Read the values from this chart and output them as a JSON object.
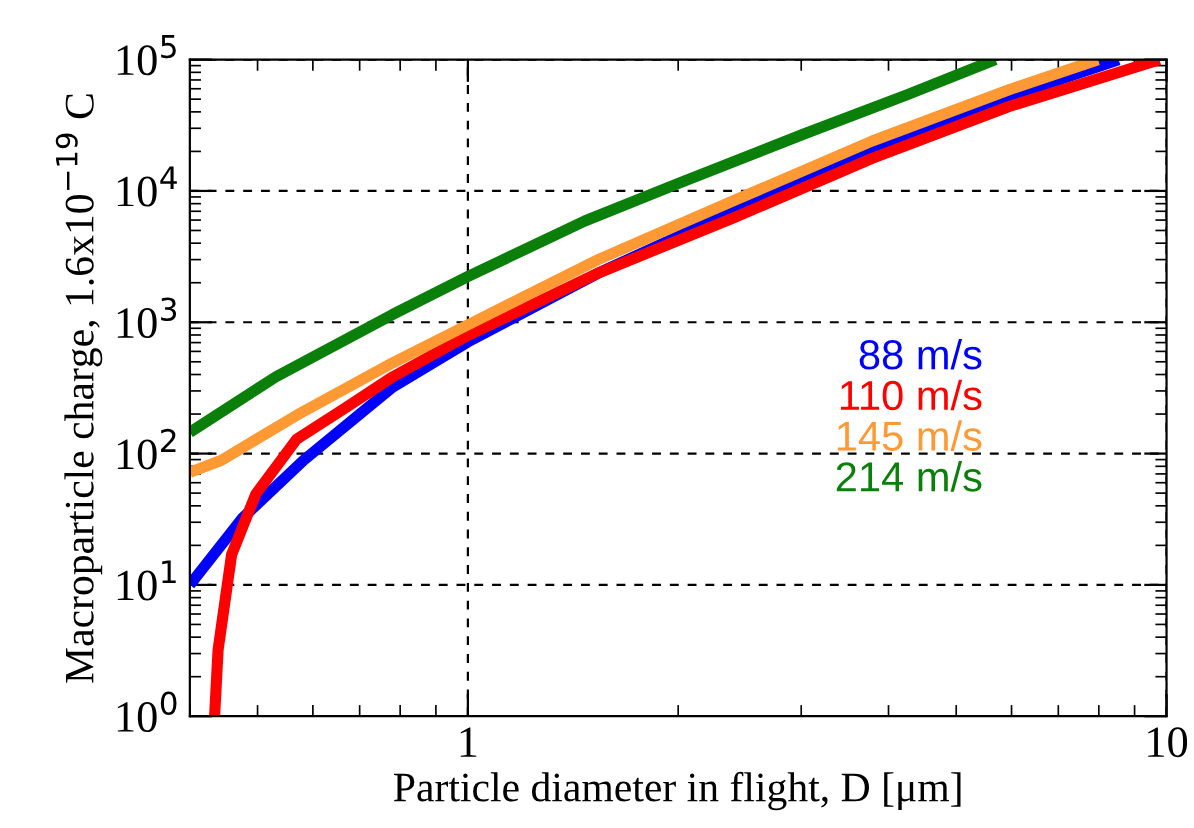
{
  "chart_data": {
    "type": "line",
    "xlabel": "Particle diameter in flight, D [μm]",
    "ylabel": "Macroparticle charge, 1.6x10$^{−19}$ C",
    "log": "xy",
    "grid": true,
    "line_style": "solid",
    "marker": "none",
    "xlim": [
      0.4,
      10
    ],
    "ylim": [
      1,
      100000
    ],
    "xticks": [
      1,
      10
    ],
    "yticks": [
      {
        "value": 1,
        "label": "10$^{0}$"
      },
      {
        "value": 10,
        "label": "10$^{1}$"
      },
      {
        "value": 100,
        "label": "10$^{2}$"
      },
      {
        "value": 1000,
        "label": "10$^{3}$"
      },
      {
        "value": 10000,
        "label": "10$^{4}$"
      },
      {
        "value": 100000,
        "label": "10$^{5}$"
      }
    ],
    "series": [
      {
        "name": "88 m/s",
        "color": "#0000ff",
        "x": [
          0.4,
          0.475,
          0.582,
          0.78,
          1,
          1.54,
          2.41,
          3.79,
          5.95,
          8.54
        ],
        "values": [
          10,
          32,
          89,
          320,
          708,
          2380,
          7080,
          21100,
          52500,
          100000
        ]
      },
      {
        "name": "110 m/s",
        "color": "#ff0000",
        "x": [
          0.434,
          0.439,
          0.459,
          0.497,
          0.569,
          0.667,
          0.78,
          1,
          1.54,
          2.41,
          3.79,
          5.95,
          9.77
        ],
        "values": [
          1,
          3.2,
          17,
          49,
          129,
          222,
          383,
          794,
          2380,
          6300,
          17700,
          43900,
          100000
        ]
      },
      {
        "name": "145 m/s",
        "color": "#ff9933",
        "x": [
          0.4,
          0.444,
          0.569,
          0.78,
          1,
          1.54,
          2.41,
          3.79,
          5.95,
          7.98
        ],
        "values": [
          72,
          89,
          196,
          490,
          955,
          3020,
          8500,
          24000,
          59000,
          100000
        ]
      },
      {
        "name": "214 m/s",
        "color": "#0a800a",
        "x": [
          0.4,
          0.531,
          0.78,
          1,
          1.47,
          2.01,
          3.02,
          4.24,
          5.69
        ],
        "values": [
          145,
          384,
          1145,
          2230,
          5900,
          11500,
          27000,
          53700,
          100000
        ]
      }
    ]
  }
}
